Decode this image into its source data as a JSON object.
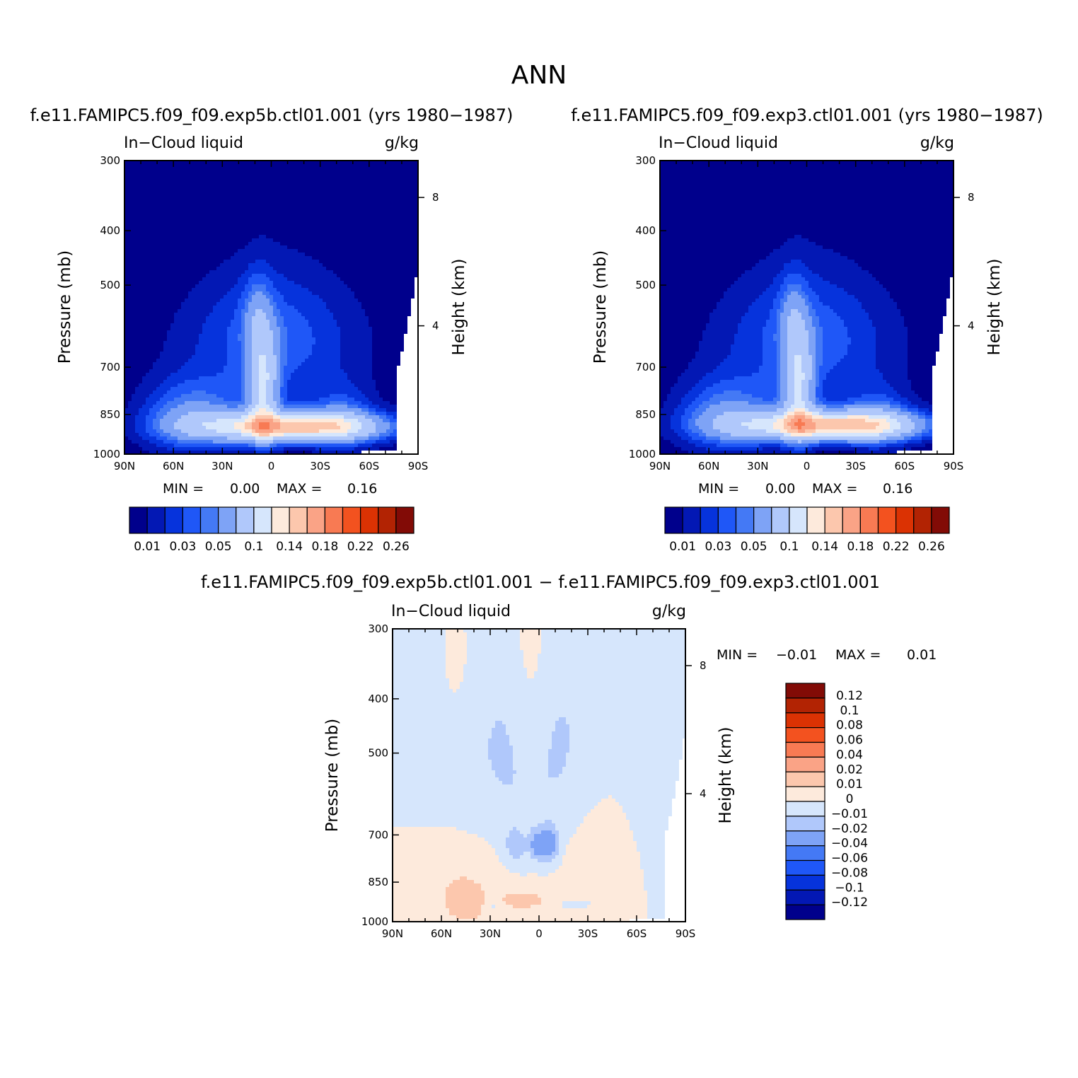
{
  "page_title": "ANN",
  "colors": {
    "seq": [
      "#00008c",
      "#0318b4",
      "#0633dc",
      "#1f57f7",
      "#4479f5",
      "#7ea3f6",
      "#b0c8fb",
      "#d6e6fc",
      "#fdeadc",
      "#fcc7ad",
      "#faa386",
      "#f87a53",
      "#f3521f",
      "#db3203",
      "#b22303",
      "#820b06"
    ],
    "div": [
      "#00008c",
      "#0318b4",
      "#0633dc",
      "#1f57f7",
      "#4479f5",
      "#7ea3f6",
      "#b0c8fb",
      "#d6e6fc",
      "#fdeadc",
      "#fcc7ad",
      "#faa386",
      "#f87a53",
      "#f3521f",
      "#db3203",
      "#b22303",
      "#820b06"
    ]
  },
  "chart_data": [
    {
      "type": "heatmap",
      "title": "f.e11.FAMIPC5.f09_f09.exp5b.ctl01.001 (yrs 1980-1987)",
      "title_display": "f.e11.FAMIPC5.f09_f09.exp5b.ctl01.001 (yrs 1980−1987)",
      "left_label": "In−Cloud liquid",
      "units": "g/kg",
      "ylabel": "Pressure (mb)",
      "ylabel_right": "Height (km)",
      "x_ticks": [
        "90N",
        "60N",
        "30N",
        "0",
        "30S",
        "60S",
        "90S"
      ],
      "x_range": [
        90,
        -90
      ],
      "y_ticks": [
        "300",
        "400",
        "500",
        "700",
        "850",
        "1000"
      ],
      "y_range": [
        300,
        1000
      ],
      "y_scale": "log",
      "height_ticks": [
        "8",
        "4"
      ],
      "min_label": "MIN =",
      "min_value": "0.00",
      "max_label": "MAX =",
      "max_value": "0.16",
      "colorbar_labels": [
        "0.01",
        "0.03",
        "0.05",
        "0.1",
        "0.14",
        "0.18",
        "0.22",
        "0.26"
      ],
      "colorbar_levels": [
        0.01,
        0.02,
        0.03,
        0.04,
        0.05,
        0.07,
        0.1,
        0.12,
        0.14,
        0.16,
        0.18,
        0.2,
        0.22,
        0.24,
        0.26
      ],
      "peak": {
        "lat": -13,
        "p": 895,
        "value": 0.16
      }
    },
    {
      "type": "heatmap",
      "title": "f.e11.FAMIPC5.f09_f09.exp3.ctl01.001 (yrs 1980-1987)",
      "title_display": "f.e11.FAMIPC5.f09_f09.exp3.ctl01.001 (yrs 1980−1987)",
      "left_label": "In−Cloud liquid",
      "units": "g/kg",
      "ylabel": "Pressure (mb)",
      "ylabel_right": "Height (km)",
      "x_ticks": [
        "90N",
        "60N",
        "30N",
        "0",
        "30S",
        "60S",
        "90S"
      ],
      "x_range": [
        90,
        -90
      ],
      "y_ticks": [
        "300",
        "400",
        "500",
        "700",
        "850",
        "1000"
      ],
      "y_range": [
        300,
        1000
      ],
      "y_scale": "log",
      "height_ticks": [
        "8",
        "4"
      ],
      "min_label": "MIN =",
      "min_value": "0.00",
      "max_label": "MAX =",
      "max_value": "0.16",
      "colorbar_labels": [
        "0.01",
        "0.03",
        "0.05",
        "0.1",
        "0.14",
        "0.18",
        "0.22",
        "0.26"
      ],
      "colorbar_levels": [
        0.01,
        0.02,
        0.03,
        0.04,
        0.05,
        0.07,
        0.1,
        0.12,
        0.14,
        0.16,
        0.18,
        0.2,
        0.22,
        0.24,
        0.26
      ],
      "peak": {
        "lat": -15,
        "p": 890,
        "value": 0.16
      }
    },
    {
      "type": "heatmap",
      "title": "f.e11.FAMIPC5.f09_f09.exp5b.ctl01.001 - f.e11.FAMIPC5.f09_f09.exp3.ctl01.001",
      "title_display": "f.e11.FAMIPC5.f09_f09.exp5b.ctl01.001 − f.e11.FAMIPC5.f09_f09.exp3.ctl01.001",
      "left_label": "In−Cloud liquid",
      "units": "g/kg",
      "ylabel": "Pressure (mb)",
      "ylabel_right": "Height (km)",
      "x_ticks": [
        "90N",
        "60N",
        "30N",
        "0",
        "30S",
        "60S",
        "90S"
      ],
      "x_range": [
        90,
        -90
      ],
      "y_ticks": [
        "300",
        "400",
        "500",
        "700",
        "850",
        "1000"
      ],
      "y_range": [
        300,
        1000
      ],
      "y_scale": "log",
      "height_ticks": [
        "8",
        "4"
      ],
      "min_label": "MIN =",
      "min_value": "−0.01",
      "max_label": "MAX =",
      "max_value": "0.01",
      "colorbar_labels": [
        "0.12",
        "0.1",
        "0.08",
        "0.06",
        "0.04",
        "0.02",
        "0.01",
        "0",
        "−0.01",
        "−0.02",
        "−0.04",
        "−0.06",
        "−0.08",
        "−0.1",
        "−0.12"
      ],
      "colorbar_levels": [
        -0.12,
        -0.1,
        -0.08,
        -0.06,
        -0.04,
        -0.02,
        -0.01,
        0,
        0.01,
        0.02,
        0.04,
        0.06,
        0.08,
        0.1,
        0.12
      ]
    }
  ]
}
